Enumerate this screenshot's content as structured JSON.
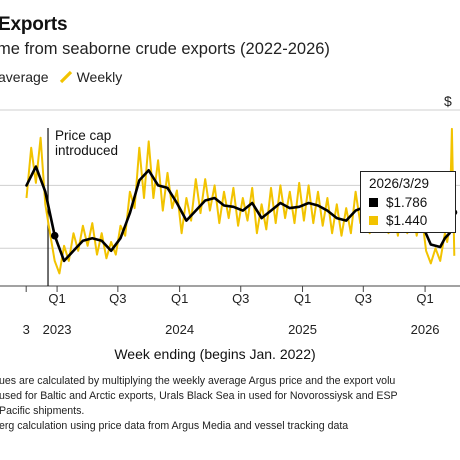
{
  "header": {
    "title": "Exports",
    "subtitle": "me from seaborne crude exports (2022-2026)",
    "legend_average": "average",
    "legend_weekly": "Weekly",
    "edge_label": "$"
  },
  "tooltip": {
    "date": "2026/3/29",
    "average_value": "$1.786",
    "weekly_value": "$1.440"
  },
  "notes": [
    "ues are calculated by multiplying the weekly average Argus price and the export volu",
    "used for Baltic and Arctic exports, Urals Black Sea in used for Novorossiysk and ESP",
    "Pacific shipments.",
    "erg calculation using price data from Argus Media and vessel tracking data"
  ],
  "colors": {
    "average": "#000000",
    "weekly": "#f2c300",
    "grid": "#cfcfcf",
    "axis": "#444444"
  },
  "chart_data": {
    "type": "line",
    "title": "",
    "xlabel": "Week ending (begins Jan. 2022)",
    "ylabel": "",
    "x_tick_labels": [
      {
        "x": "2022-10",
        "label": "",
        "year": "3"
      },
      {
        "x": "2023-01",
        "label": "Q1",
        "year": "2023"
      },
      {
        "x": "2023-07",
        "label": "Q3",
        "year": ""
      },
      {
        "x": "2024-01",
        "label": "Q1",
        "year": "2024"
      },
      {
        "x": "2024-07",
        "label": "Q3",
        "year": ""
      },
      {
        "x": "2025-01",
        "label": "Q1",
        "year": "2025"
      },
      {
        "x": "2025-07",
        "label": "Q3",
        "year": ""
      },
      {
        "x": "2026-01",
        "label": "Q1",
        "year": "2026"
      }
    ],
    "annotation": {
      "x": "2022-12-05",
      "text_lines": [
        "Price cap",
        "introduced"
      ]
    },
    "series": [
      {
        "name": "average",
        "x": [
          "2022-10-02",
          "2022-10-30",
          "2022-11-27",
          "2022-12-25",
          "2023-01-22",
          "2023-02-19",
          "2023-03-19",
          "2023-04-16",
          "2023-05-14",
          "2023-06-11",
          "2023-07-09",
          "2023-08-06",
          "2023-09-03",
          "2023-10-01",
          "2023-10-29",
          "2023-11-26",
          "2023-12-24",
          "2024-01-21",
          "2024-02-18",
          "2024-03-17",
          "2024-04-14",
          "2024-05-12",
          "2024-06-09",
          "2024-07-07",
          "2024-08-04",
          "2024-09-01",
          "2024-09-29",
          "2024-10-27",
          "2024-11-24",
          "2024-12-22",
          "2025-01-19",
          "2025-02-16",
          "2025-03-16",
          "2025-04-13",
          "2025-05-11",
          "2025-06-08",
          "2025-07-06",
          "2025-08-03",
          "2025-08-31",
          "2025-09-28",
          "2025-10-26",
          "2025-11-23",
          "2025-12-21",
          "2026-01-18",
          "2026-02-15",
          "2026-03-01",
          "2026-03-15",
          "2026-03-29"
        ],
        "values": [
          2.0,
          2.15,
          1.95,
          1.6,
          1.4,
          1.48,
          1.56,
          1.58,
          1.56,
          1.48,
          1.58,
          1.78,
          2.04,
          2.12,
          2.0,
          1.98,
          1.86,
          1.72,
          1.8,
          1.88,
          1.9,
          1.84,
          1.83,
          1.8,
          1.86,
          1.74,
          1.8,
          1.86,
          1.82,
          1.83,
          1.86,
          1.84,
          1.8,
          1.74,
          1.72,
          1.8,
          1.83,
          1.77,
          1.76,
          1.72,
          1.74,
          1.8,
          1.7,
          1.53,
          1.51,
          1.58,
          1.62,
          1.786
        ]
      },
      {
        "name": "Weekly",
        "x": [
          "2022-10-02",
          "2022-10-16",
          "2022-10-30",
          "2022-11-13",
          "2022-11-27",
          "2022-12-11",
          "2022-12-25",
          "2023-01-08",
          "2023-01-22",
          "2023-02-05",
          "2023-02-19",
          "2023-03-05",
          "2023-03-19",
          "2023-04-02",
          "2023-04-16",
          "2023-04-30",
          "2023-05-14",
          "2023-05-28",
          "2023-06-11",
          "2023-06-25",
          "2023-07-09",
          "2023-07-23",
          "2023-08-06",
          "2023-08-20",
          "2023-09-03",
          "2023-09-17",
          "2023-10-01",
          "2023-10-15",
          "2023-10-29",
          "2023-11-12",
          "2023-11-26",
          "2023-12-10",
          "2023-12-24",
          "2024-01-07",
          "2024-01-21",
          "2024-02-04",
          "2024-02-18",
          "2024-03-03",
          "2024-03-17",
          "2024-03-31",
          "2024-04-14",
          "2024-04-28",
          "2024-05-12",
          "2024-05-26",
          "2024-06-09",
          "2024-06-23",
          "2024-07-07",
          "2024-07-21",
          "2024-08-04",
          "2024-08-18",
          "2024-09-01",
          "2024-09-15",
          "2024-09-29",
          "2024-10-13",
          "2024-10-27",
          "2024-11-10",
          "2024-11-24",
          "2024-12-08",
          "2024-12-22",
          "2025-01-05",
          "2025-01-19",
          "2025-02-02",
          "2025-02-16",
          "2025-03-02",
          "2025-03-16",
          "2025-03-30",
          "2025-04-13",
          "2025-04-27",
          "2025-05-11",
          "2025-05-25",
          "2025-06-08",
          "2025-06-22",
          "2025-07-06",
          "2025-07-20",
          "2025-08-03",
          "2025-08-17",
          "2025-08-31",
          "2025-09-14",
          "2025-09-28",
          "2025-10-12",
          "2025-10-26",
          "2025-11-09",
          "2025-11-23",
          "2025-12-07",
          "2025-12-21",
          "2026-01-04",
          "2026-01-18",
          "2026-02-01",
          "2026-02-15",
          "2026-03-01",
          "2026-03-08",
          "2026-03-15",
          "2026-03-22",
          "2026-03-29"
        ],
        "values": [
          1.9,
          2.3,
          2.02,
          2.38,
          1.85,
          1.62,
          1.4,
          1.3,
          1.52,
          1.4,
          1.62,
          1.48,
          1.68,
          1.52,
          1.7,
          1.45,
          1.62,
          1.42,
          1.55,
          1.45,
          1.68,
          1.6,
          1.95,
          1.82,
          2.3,
          1.9,
          2.35,
          1.9,
          2.2,
          1.8,
          2.1,
          1.82,
          1.96,
          1.62,
          1.9,
          1.72,
          2.05,
          1.78,
          2.05,
          1.8,
          2.0,
          1.7,
          1.95,
          1.74,
          1.98,
          1.68,
          1.9,
          1.72,
          1.98,
          1.62,
          1.85,
          1.65,
          1.98,
          1.7,
          2.0,
          1.74,
          1.95,
          1.7,
          2.02,
          1.72,
          2.0,
          1.7,
          1.95,
          1.68,
          1.9,
          1.62,
          1.85,
          1.6,
          1.82,
          1.62,
          1.95,
          1.7,
          1.92,
          1.62,
          1.88,
          1.65,
          1.85,
          1.62,
          1.82,
          1.6,
          1.88,
          1.62,
          1.85,
          1.6,
          1.78,
          1.48,
          1.38,
          1.5,
          1.4,
          1.62,
          1.55,
          1.68,
          2.45,
          1.44
        ]
      }
    ],
    "x_range": [
      "2022-07-15",
      "2026-04-15"
    ],
    "ylim": [
      1.2,
      2.6
    ],
    "y_gridlines": [
      1.5,
      2.0
    ],
    "grid": true,
    "legend": "top-left"
  }
}
